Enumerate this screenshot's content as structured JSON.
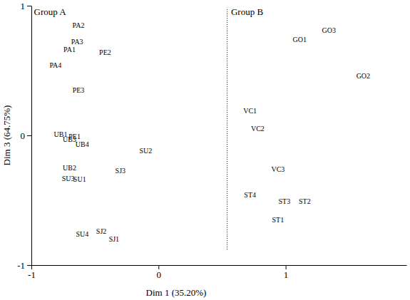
{
  "chart_data": {
    "type": "scatter",
    "marker": "none",
    "x_label": "Dim 1 (35.20%)",
    "y_label": "Dim 3 (64.75%)",
    "xlim": [
      -1,
      1.95
    ],
    "ylim": [
      -1,
      1
    ],
    "xticks": [
      -1,
      0,
      1
    ],
    "yticks": [
      -1,
      0,
      1
    ],
    "point_labels": [
      "PA2",
      "PA3",
      "PA1",
      "PE2",
      "PA4",
      "PE3",
      "UB1",
      "PE1",
      "UB3",
      "UB4",
      "SU2",
      "UB2",
      "SJ3",
      "SU3",
      "SU1",
      "SU4",
      "SJ2",
      "SJ1",
      "GO3",
      "GO1",
      "GO2",
      "VC1",
      "VC2",
      "VC3",
      "ST4",
      "ST3",
      "ST2",
      "ST1"
    ],
    "x": [
      -0.63,
      -0.64,
      -0.7,
      -0.42,
      -0.81,
      -0.63,
      -0.77,
      -0.66,
      -0.7,
      -0.6,
      -0.1,
      -0.7,
      -0.3,
      -0.71,
      -0.62,
      -0.6,
      -0.45,
      -0.35,
      1.34,
      1.11,
      1.61,
      0.72,
      0.78,
      0.94,
      0.72,
      0.99,
      1.15,
      0.94
    ],
    "values": [
      0.85,
      0.72,
      0.66,
      0.64,
      0.54,
      0.35,
      0.01,
      -0.01,
      -0.03,
      -0.07,
      -0.12,
      -0.25,
      -0.27,
      -0.33,
      -0.34,
      -0.76,
      -0.74,
      -0.8,
      0.81,
      0.74,
      0.46,
      0.19,
      0.05,
      -0.26,
      -0.46,
      -0.51,
      -0.51,
      -0.65
    ],
    "reference_line": {
      "x": 0.54,
      "y": [
        -0.88,
        0.98
      ],
      "line_style": "dotted"
    },
    "annotations": [
      {
        "text": "Group A",
        "x": -0.98,
        "y": 0.93
      },
      {
        "text": "Group B",
        "x": 0.57,
        "y": 0.93
      }
    ]
  }
}
